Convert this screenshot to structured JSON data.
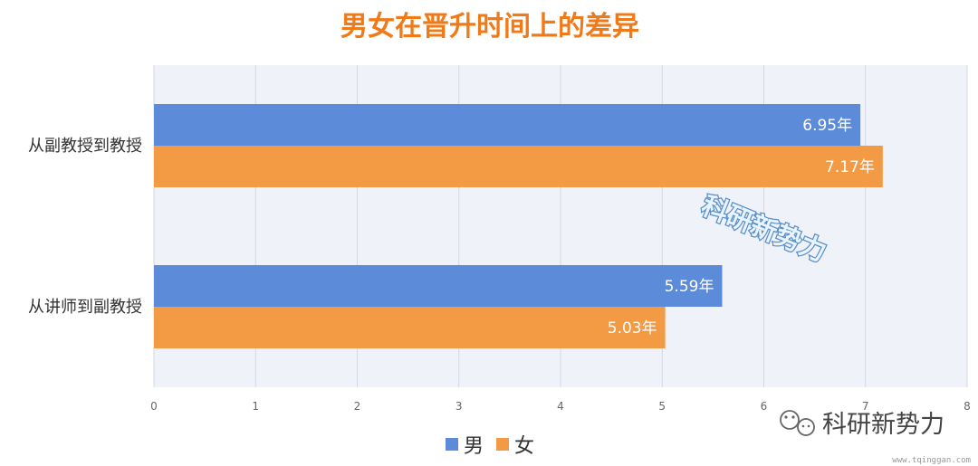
{
  "chart_data": {
    "type": "bar",
    "orientation": "horizontal",
    "title": "男女在晋升时间上的差异",
    "categories": [
      "从副教授到教授",
      "从讲师到副教授"
    ],
    "series": [
      {
        "name": "男",
        "values": [
          6.95,
          5.59
        ],
        "labels": [
          "6.95年",
          "5.59年"
        ],
        "color": "#5b8bd9"
      },
      {
        "name": "女",
        "values": [
          7.17,
          5.03
        ],
        "labels": [
          "7.17年",
          "5.03年"
        ],
        "color": "#f39a45"
      }
    ],
    "xlim": [
      0,
      8
    ],
    "xticks": [
      "0",
      "1",
      "2",
      "3",
      "4",
      "5",
      "6",
      "7",
      "8"
    ],
    "xlabel": "",
    "ylabel": "",
    "grid": true,
    "legend_position": "bottom-center"
  },
  "watermark": {
    "center_text": "科研新势力",
    "wechat_text": "科研新势力",
    "url_text": "www.tqinggan.com"
  },
  "colors": {
    "title": "#f07a18",
    "plot_bg": "#f0f2fa",
    "grid": "#d4d8e2"
  }
}
